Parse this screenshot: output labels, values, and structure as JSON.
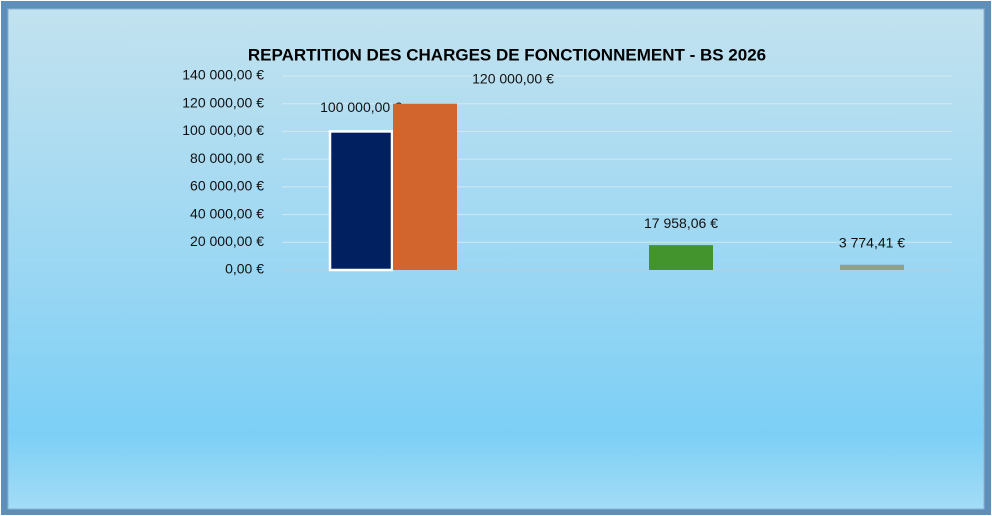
{
  "chart_data": {
    "type": "bar",
    "title": "REPARTITION DES CHARGES DE FONCTIONNEMENT - BS 2026",
    "values": [
      100000,
      120000,
      17958.06,
      3774.41
    ],
    "value_labels": [
      "100 000,00 €",
      "120 000,00 €",
      "17 958,06 €",
      "3 774,41 €"
    ],
    "colors": [
      "#002060",
      "#d2642d",
      "#43942c",
      "#8fa08c"
    ],
    "ylim": [
      0,
      140000
    ],
    "yticks": [
      {
        "value": 0,
        "label": "0,00 €"
      },
      {
        "value": 20000,
        "label": "20 000,00 €"
      },
      {
        "value": 40000,
        "label": "40 000,00 €"
      },
      {
        "value": 60000,
        "label": "60 000,00 €"
      },
      {
        "value": 80000,
        "label": "80 000,00 €"
      },
      {
        "value": 100000,
        "label": "100 000,00 €"
      },
      {
        "value": 120000,
        "label": "120 000,00 €"
      },
      {
        "value": 140000,
        "label": "140 000,00 €"
      }
    ],
    "grid": true
  }
}
